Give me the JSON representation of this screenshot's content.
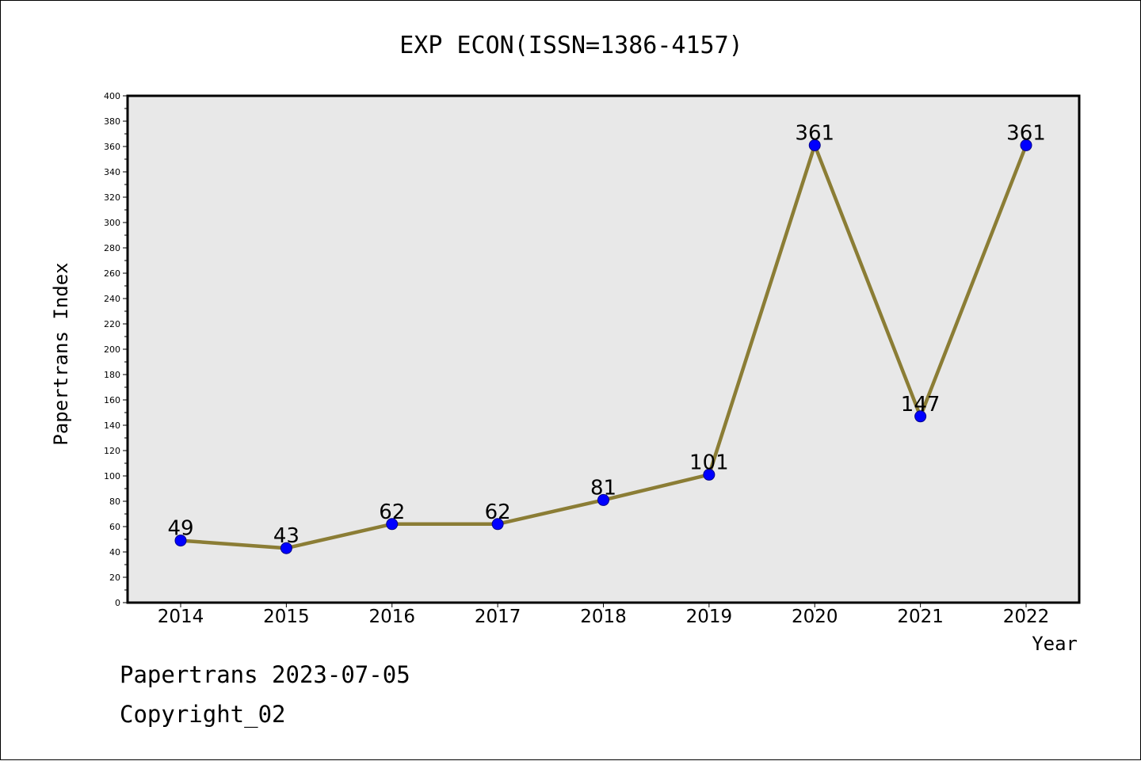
{
  "chart_data": {
    "type": "line",
    "title": "EXP ECON(ISSN=1386-4157)",
    "xlabel": "Year",
    "ylabel": "Papertrans Index",
    "categories": [
      "2014",
      "2015",
      "2016",
      "2017",
      "2018",
      "2019",
      "2020",
      "2021",
      "2022"
    ],
    "values": [
      49,
      43,
      62,
      62,
      81,
      101,
      361,
      147,
      361
    ],
    "data_labels": [
      "49",
      "43",
      "62",
      "62",
      "81",
      "101",
      "361",
      "147",
      "361"
    ],
    "ylim": [
      0,
      400
    ],
    "y_ticks": [
      "0",
      "20",
      "40",
      "60",
      "80",
      "100",
      "120",
      "140",
      "160",
      "180",
      "200",
      "220",
      "240",
      "260",
      "280",
      "300",
      "320",
      "340",
      "360",
      "380",
      "400"
    ],
    "grid": false,
    "legend": "none",
    "colors": {
      "line": "#8b7d35",
      "marker": "#0000ff",
      "plot_background": "#e8e8e8"
    }
  },
  "footer": {
    "date_line": "Papertrans 2023-07-05",
    "copyright_line": "Copyright_02"
  }
}
